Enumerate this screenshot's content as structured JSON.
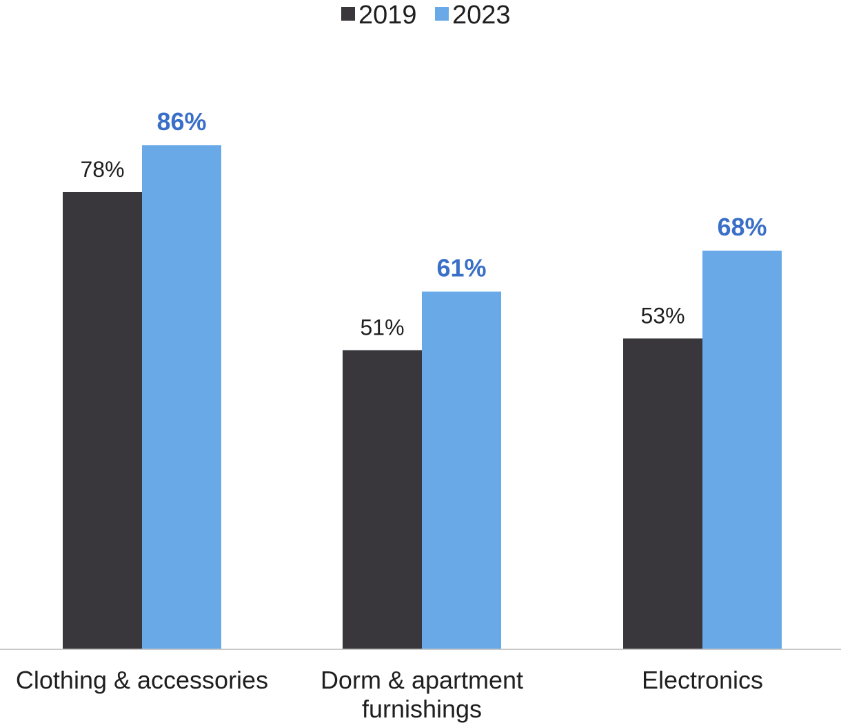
{
  "chart_data": {
    "type": "bar",
    "categories": [
      [
        "Clothing & accessories"
      ],
      [
        "Dorm & apartment",
        "furnishings"
      ],
      [
        "Electronics"
      ]
    ],
    "series": [
      {
        "name": "2019",
        "values": [
          78,
          51,
          53
        ],
        "labels": [
          "78%",
          "51%",
          "53%"
        ],
        "color": "#3a373c",
        "label_color": "#1f1f1f",
        "label_bold": false
      },
      {
        "name": "2023",
        "values": [
          86,
          61,
          68
        ],
        "labels": [
          "86%",
          "61%",
          "68%"
        ],
        "color": "#69a9e8",
        "label_color": "#3a6fc7",
        "label_bold": true
      }
    ],
    "ylim": [
      0,
      100
    ],
    "grid": false,
    "legend_position": "top-center",
    "axis_color": "#c8c8c8"
  }
}
